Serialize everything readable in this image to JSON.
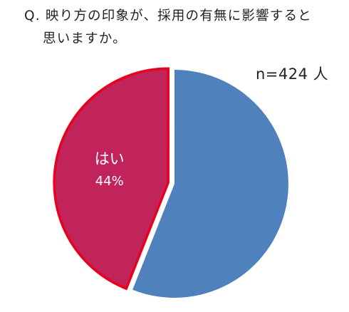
{
  "question": {
    "line1": "Q. 映り方の印象が、採用の有無に影響すると",
    "line2": "思いますか。"
  },
  "sample_size": "n=424 人",
  "colors": {
    "yes_fill": "#C0245A",
    "yes_border": "#E8001C",
    "other_fill": "#4F81BD"
  },
  "chart_data": {
    "type": "pie",
    "title": "",
    "categories": [
      "はい",
      ""
    ],
    "values": [
      44,
      56
    ],
    "data_labels": [
      {
        "category": "はい",
        "value_text": "44%"
      }
    ],
    "legend": "none",
    "start_angle_deg": 0,
    "direction": "counterclockwise",
    "exploded": [
      "はい"
    ]
  }
}
